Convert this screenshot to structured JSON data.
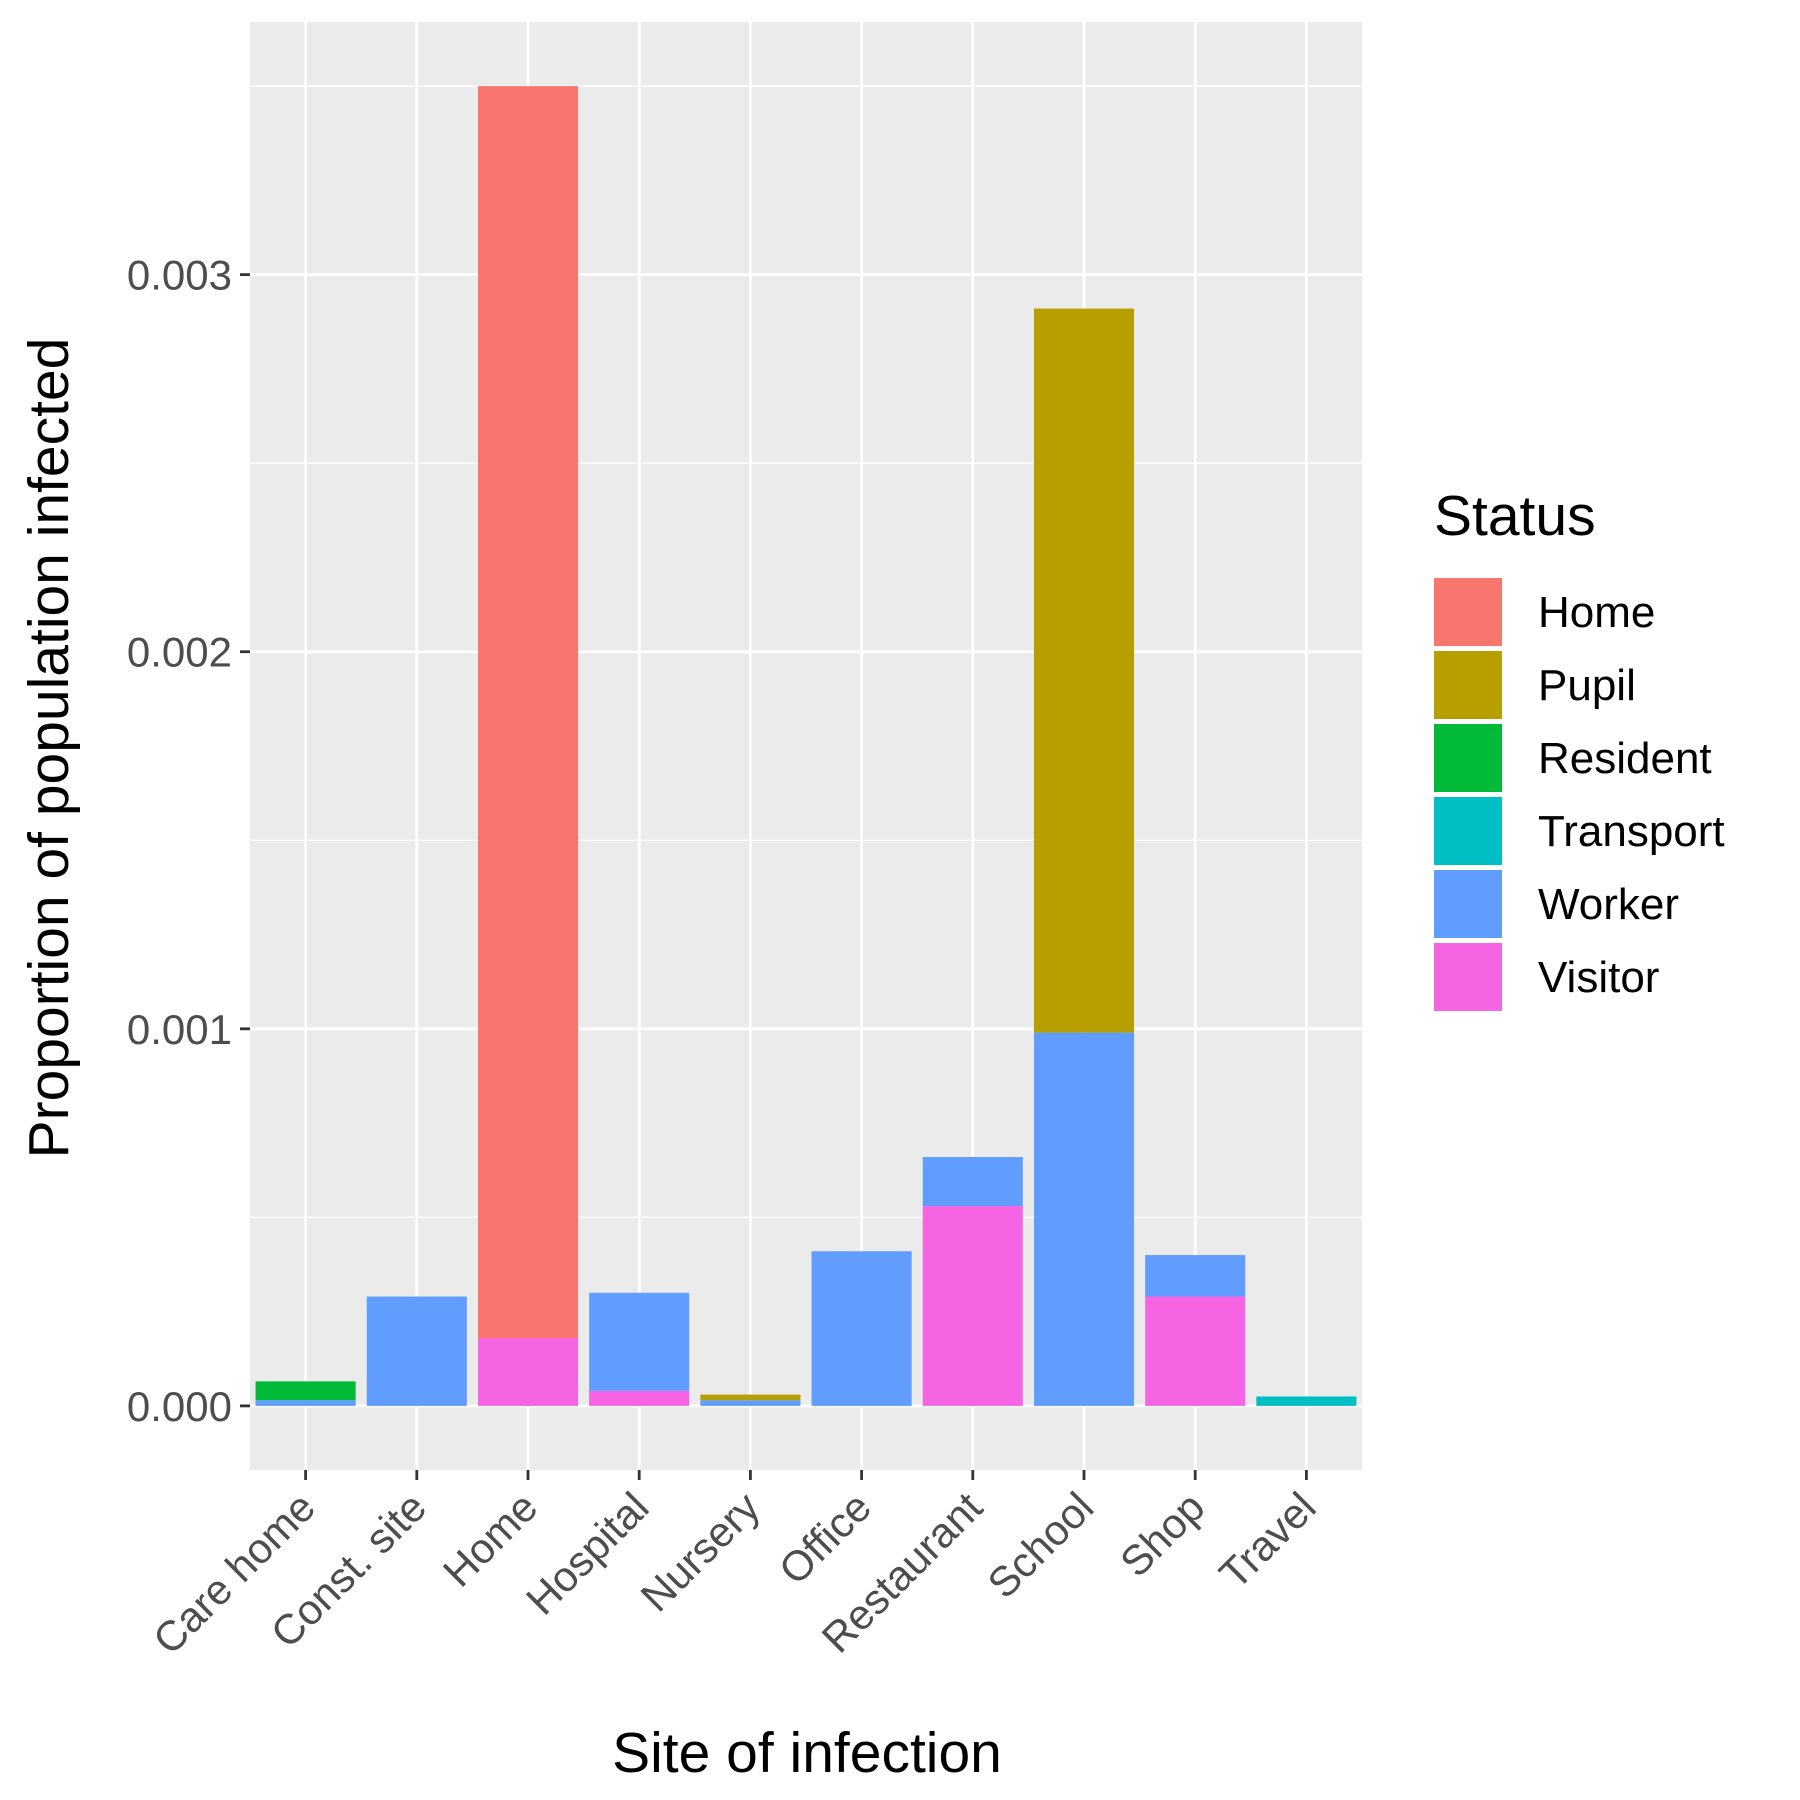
{
  "chart_data": {
    "type": "bar",
    "stacked": true,
    "xlabel": "Site of infection",
    "ylabel": "Proportion of population infected",
    "categories": [
      "Care home",
      "Const. site",
      "Home",
      "Hospital",
      "Nursery",
      "Office",
      "Restaurant",
      "School",
      "Shop",
      "Travel"
    ],
    "ylim": [
      -0.00017,
      0.00367
    ],
    "yticks": [
      0.0,
      0.001,
      0.002,
      0.003
    ],
    "ytick_labels": [
      "0.000",
      "0.001",
      "0.002",
      "0.003"
    ],
    "grid": true,
    "legend": {
      "title": "Status",
      "position": "right",
      "entries": [
        "Home",
        "Pupil",
        "Resident",
        "Transport",
        "Worker",
        "Visitor"
      ]
    },
    "stack_order_bottom_to_top": [
      "Visitor",
      "Worker",
      "Transport",
      "Resident",
      "Pupil",
      "Home"
    ],
    "series": [
      {
        "name": "Home",
        "color": "#F8766D",
        "values": [
          0,
          0,
          0.00332,
          0,
          0,
          0,
          0,
          0,
          0,
          0
        ]
      },
      {
        "name": "Pupil",
        "color": "#B79F00",
        "values": [
          0,
          0,
          0,
          0,
          1.5e-05,
          0,
          0,
          0.00192,
          0,
          0
        ]
      },
      {
        "name": "Resident",
        "color": "#00BA38",
        "values": [
          5e-05,
          0,
          0,
          0,
          0,
          0,
          0,
          0,
          0,
          0
        ]
      },
      {
        "name": "Transport",
        "color": "#00BFC4",
        "values": [
          0,
          0,
          0,
          0,
          0,
          0,
          0,
          0,
          0,
          2.5e-05
        ]
      },
      {
        "name": "Worker",
        "color": "#619CFF",
        "values": [
          1.5e-05,
          0.00029,
          0,
          0.00026,
          1.5e-05,
          0.00041,
          0.00013,
          0.00099,
          0.00011,
          0
        ]
      },
      {
        "name": "Visitor",
        "color": "#F564E3",
        "values": [
          0,
          0,
          0.00018,
          4e-05,
          0,
          0,
          0.00053,
          0,
          0.00029,
          0
        ]
      }
    ]
  }
}
